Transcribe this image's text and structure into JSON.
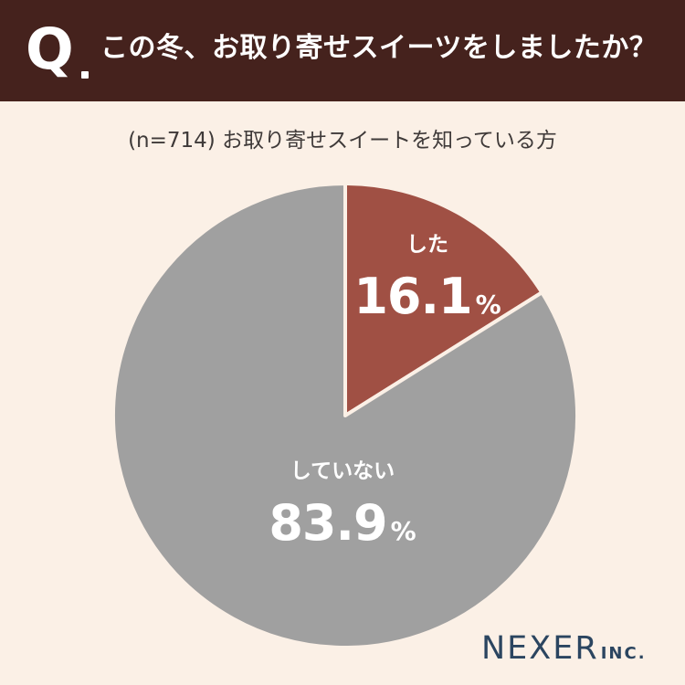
{
  "header": {
    "q_mark": "Q",
    "question": "この冬、お取り寄せスイーツをしましたか？"
  },
  "subtitle": "(n=714) お取り寄せスイートを知っている方",
  "colors": {
    "header_bg": "#45221d",
    "page_bg": "#fbf0e6",
    "slice_did": "#a05044",
    "slice_did_not": "#a0a0a0",
    "logo": "#2b4560"
  },
  "chart_data": {
    "type": "pie",
    "title": "",
    "n": 714,
    "start_angle": "12 o'clock, clockwise",
    "slices": [
      {
        "label": "した",
        "value": 16.1,
        "display": "16.1",
        "unit": "%",
        "color": "#a05044"
      },
      {
        "label": "していない",
        "value": 83.9,
        "display": "83.9",
        "unit": "%",
        "color": "#a0a0a0"
      }
    ]
  },
  "logo": {
    "main": "NEXER",
    "sub": "INC."
  }
}
